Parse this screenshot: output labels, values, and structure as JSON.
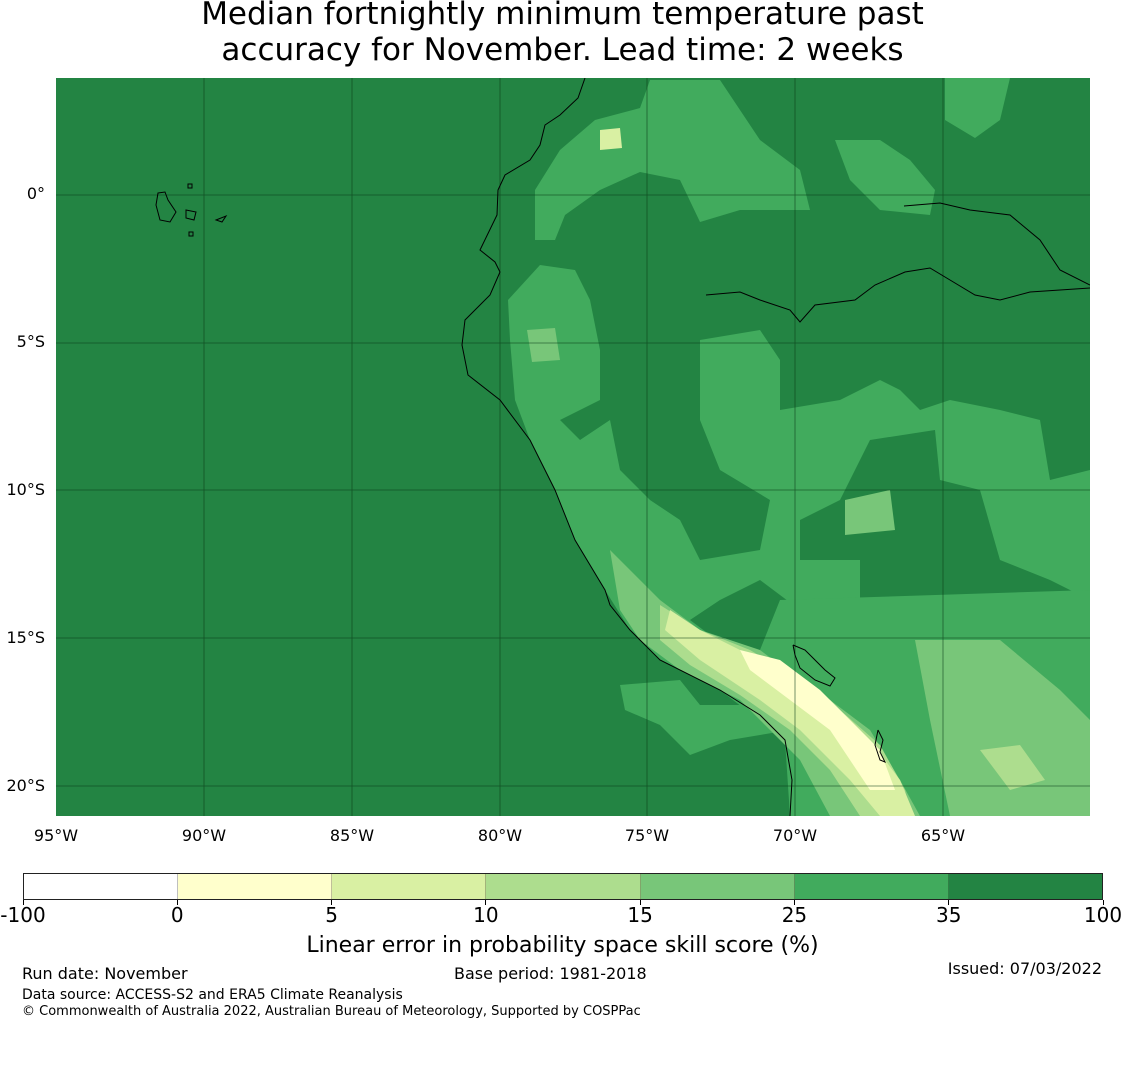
{
  "title_line1": "Median fortnightly minimum temperature past",
  "title_line2": "accuracy for November. Lead time: 2 weeks",
  "map": {
    "lat_labels": [
      "0°",
      "5°S",
      "10°S",
      "15°S",
      "20°S"
    ],
    "lon_labels": [
      "95°W",
      "90°W",
      "85°W",
      "80°W",
      "75°W",
      "70°W",
      "65°W"
    ],
    "background_color": "#238443"
  },
  "colorbar": {
    "bins": [
      {
        "from": -100,
        "to": 0,
        "color": "#ffffff"
      },
      {
        "from": 0,
        "to": 5,
        "color": "#ffffcc"
      },
      {
        "from": 5,
        "to": 10,
        "color": "#d9f0a3"
      },
      {
        "from": 10,
        "to": 15,
        "color": "#addd8e"
      },
      {
        "from": 15,
        "to": 25,
        "color": "#78c679"
      },
      {
        "from": 25,
        "to": 35,
        "color": "#41ab5d"
      },
      {
        "from": 35,
        "to": 100,
        "color": "#238443"
      }
    ],
    "tick_labels": [
      "-100",
      "0",
      "5",
      "10",
      "15",
      "25",
      "35",
      "100"
    ],
    "label": "Linear error in probability space skill score (%)"
  },
  "footer": {
    "run_date": "Run date: November",
    "base_period": "Base period: 1981-2018",
    "issued": "Issued: 07/03/2022",
    "data_source": "Data source: ACCESS-S2 and ERA5 Climate Reanalysis",
    "copyright": "© Commonwealth of Australia 2022, Australian Bureau of Meteorology, Supported by COSPPac"
  }
}
